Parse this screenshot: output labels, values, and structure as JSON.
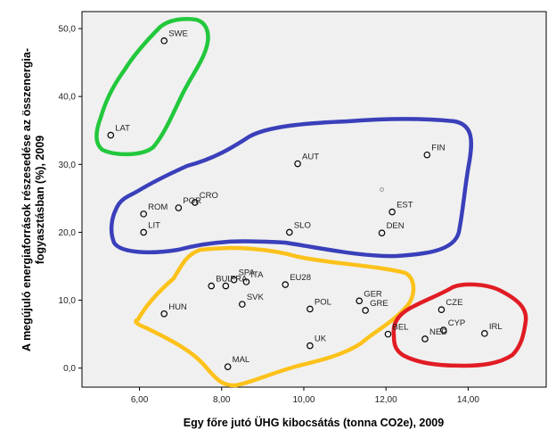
{
  "chart_data": {
    "type": "scatter",
    "xlabel": "Egy főre jutó ÜHG kibocsátás (tonna CO2e), 2009",
    "ylabel_line1": "A megújuló energiaforrások részesedése az összenergia-",
    "ylabel_line2": "fogyasztásban (%), 2009",
    "xlim": [
      4.6,
      15.9
    ],
    "ylim": [
      -2.8,
      52.5
    ],
    "xticks": [
      6,
      8,
      10,
      12,
      14
    ],
    "xtick_labels": [
      "6,00",
      "8,00",
      "10,00",
      "12,00",
      "14,00"
    ],
    "yticks": [
      0,
      10,
      20,
      30,
      40,
      50
    ],
    "ytick_labels": [
      "0,0",
      "10,0",
      "20,0",
      "30,0",
      "40,0",
      "50,0"
    ],
    "grid": false,
    "points": [
      {
        "label": "SWE",
        "x": 6.6,
        "y": 48.2
      },
      {
        "label": "LAT",
        "x": 5.3,
        "y": 34.3
      },
      {
        "label": "AUT",
        "x": 9.85,
        "y": 30.1
      },
      {
        "label": "FIN",
        "x": 13.0,
        "y": 31.4
      },
      {
        "label": "ROM",
        "x": 6.1,
        "y": 22.7
      },
      {
        "label": "CRO",
        "x": 7.35,
        "y": 24.4
      },
      {
        "label": "POR",
        "x": 6.95,
        "y": 23.6
      },
      {
        "label": "LIT",
        "x": 6.1,
        "y": 20.0
      },
      {
        "label": "SLO",
        "x": 9.65,
        "y": 20.0
      },
      {
        "label": "EST",
        "x": 12.15,
        "y": 23.0
      },
      {
        "label": "DEN",
        "x": 11.9,
        "y": 19.9
      },
      {
        "label": "BUL",
        "x": 7.75,
        "y": 12.1
      },
      {
        "label": "SPA",
        "x": 8.3,
        "y": 13.0
      },
      {
        "label": "FRA",
        "x": 8.1,
        "y": 12.1
      },
      {
        "label": "ITA",
        "x": 8.6,
        "y": 12.7
      },
      {
        "label": "EU28",
        "x": 9.55,
        "y": 12.3
      },
      {
        "label": "SVK",
        "x": 8.5,
        "y": 9.4
      },
      {
        "label": "HUN",
        "x": 6.6,
        "y": 8.0
      },
      {
        "label": "POL",
        "x": 10.15,
        "y": 8.7
      },
      {
        "label": "GER",
        "x": 11.35,
        "y": 9.9
      },
      {
        "label": "GRE",
        "x": 11.5,
        "y": 8.5
      },
      {
        "label": "BEL",
        "x": 12.05,
        "y": 5.0
      },
      {
        "label": "UK",
        "x": 10.15,
        "y": 3.3
      },
      {
        "label": "MAL",
        "x": 8.15,
        "y": 0.2
      },
      {
        "label": "CZE",
        "x": 13.35,
        "y": 8.6
      },
      {
        "label": "CYP",
        "x": 13.4,
        "y": 5.6
      },
      {
        "label": "IRL",
        "x": 14.4,
        "y": 5.1
      },
      {
        "label": "NED",
        "x": 12.95,
        "y": 4.3
      }
    ],
    "extra_marker": {
      "x": 11.9,
      "y": 26.3
    },
    "clusters": [
      {
        "color": "#22c83c",
        "members": [
          "SWE",
          "LAT"
        ]
      },
      {
        "color": "#3a3fba",
        "members": [
          "AUT",
          "FIN",
          "ROM",
          "CRO",
          "POR",
          "LIT",
          "SLO",
          "EST",
          "DEN"
        ]
      },
      {
        "color": "#fcc21b",
        "members": [
          "BUL",
          "SPA",
          "FRA",
          "ITA",
          "EU28",
          "SVK",
          "HUN",
          "POL",
          "GER",
          "GRE",
          "UK",
          "MAL"
        ]
      },
      {
        "color": "#e11c24",
        "members": [
          "BEL",
          "CZE",
          "CYP",
          "IRL",
          "NED"
        ]
      }
    ]
  }
}
